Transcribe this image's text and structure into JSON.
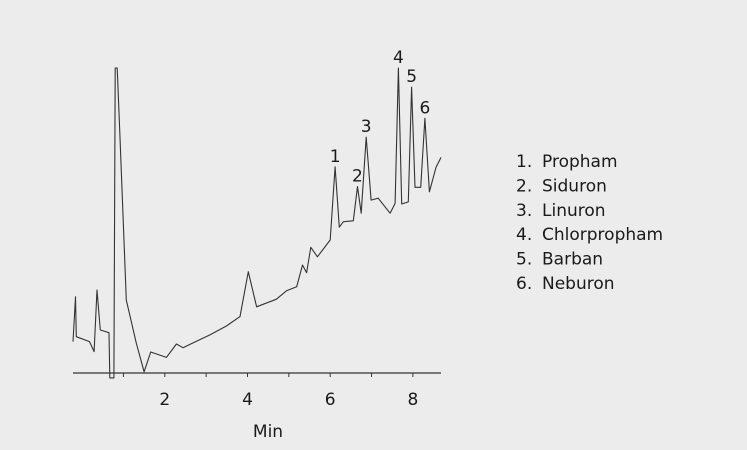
{
  "chart_data": {
    "type": "line",
    "title": "",
    "xlabel": "Min",
    "ylabel": "",
    "xlim": [
      -0.22,
      8.68
    ],
    "ylim": [
      0,
      100
    ],
    "grid": false,
    "xticks": [
      2,
      4,
      6,
      8
    ],
    "xtick_labels": [
      "2",
      "4",
      "6",
      "8"
    ],
    "x_minor_ticks": [
      1,
      2,
      3,
      4,
      5,
      6,
      7,
      8
    ],
    "series": [
      {
        "color": "#333333",
        "x": [
          -0.22,
          -0.16,
          -0.14,
          0.18,
          0.29,
          0.36,
          0.44,
          0.65,
          0.67,
          0.77,
          0.8,
          0.85,
          0.91,
          1.07,
          1.31,
          1.5,
          1.66,
          2.04,
          2.28,
          2.44,
          2.69,
          3.09,
          3.49,
          3.82,
          4.02,
          4.22,
          4.7,
          4.95,
          5.19,
          5.33,
          5.43,
          5.53,
          5.69,
          6.0,
          6.12,
          6.22,
          6.32,
          6.56,
          6.66,
          6.75,
          6.87,
          6.99,
          7.16,
          7.45,
          7.57,
          7.65,
          7.73,
          7.89,
          7.97,
          8.05,
          8.19,
          8.29,
          8.4,
          8.56,
          8.68
        ],
        "y": [
          10.3,
          25.0,
          11.9,
          10.3,
          7.0,
          27.2,
          14.1,
          13.2,
          -1.6,
          -1.6,
          100,
          100,
          79.7,
          23.9,
          9.8,
          0.4,
          6.9,
          5.1,
          9.5,
          8.3,
          9.9,
          12.5,
          15.4,
          18.5,
          33.2,
          21.7,
          24.2,
          27.0,
          28.3,
          35.4,
          32.9,
          41.2,
          38.1,
          43.6,
          67.6,
          47.8,
          49.6,
          49.9,
          61.1,
          52.4,
          77.3,
          56.7,
          57.3,
          52.4,
          55.6,
          100,
          55.4,
          56.1,
          93.7,
          60.9,
          60.9,
          83.5,
          59.4,
          67.4,
          70.7
        ]
      }
    ],
    "peak_labels": [
      {
        "label": "1",
        "x": 6.12,
        "y": 67.6
      },
      {
        "label": "2",
        "x": 6.66,
        "y": 61.1
      },
      {
        "label": "3",
        "x": 6.87,
        "y": 77.3
      },
      {
        "label": "4",
        "x": 7.65,
        "y": 100
      },
      {
        "label": "5",
        "x": 7.97,
        "y": 93.7
      },
      {
        "label": "6",
        "x": 8.29,
        "y": 83.5
      }
    ],
    "legend": {
      "placement": "right",
      "entries": [
        {
          "number": "1.",
          "name": "Propham"
        },
        {
          "number": "2.",
          "name": "Siduron"
        },
        {
          "number": "3.",
          "name": "Linuron"
        },
        {
          "number": "4.",
          "name": "Chlorpropham"
        },
        {
          "number": "5.",
          "name": "Barban"
        },
        {
          "number": "6.",
          "name": "Neburon"
        }
      ]
    }
  }
}
